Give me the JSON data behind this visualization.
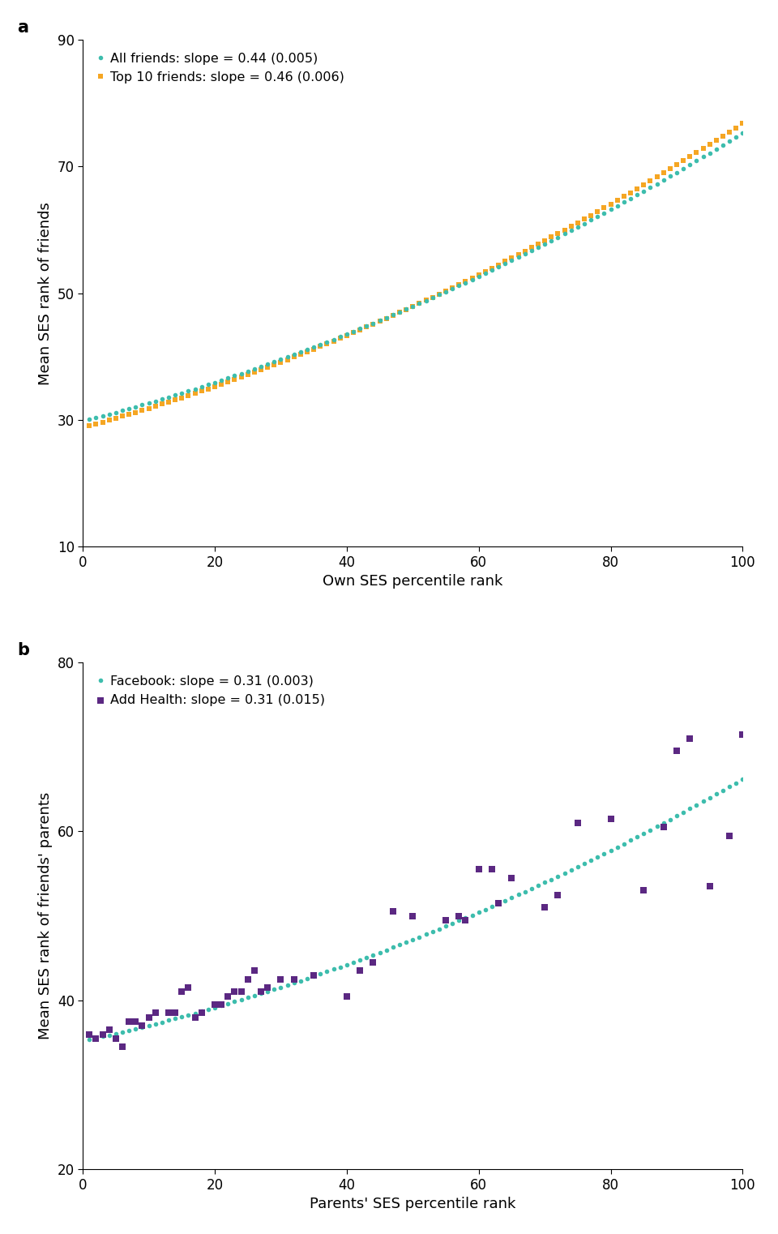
{
  "panel_a": {
    "title_label": "a",
    "xlabel": "Own SES percentile rank",
    "ylabel": "Mean SES rank of friends",
    "xlim": [
      0,
      100
    ],
    "ylim": [
      10,
      90
    ],
    "yticks": [
      10,
      30,
      50,
      70,
      90
    ],
    "xticks": [
      0,
      20,
      40,
      60,
      80,
      100
    ],
    "all_friends": {
      "label": "All friends: slope = 0.44 (0.005)",
      "color": "#3dbdad",
      "marker": "o",
      "markersize": 4.0,
      "p0": 29.8,
      "p1": 0.27,
      "p2": 0.00185
    },
    "top10_friends": {
      "label": "Top 10 friends: slope = 0.46 (0.006)",
      "color": "#f5a623",
      "marker": "s",
      "markersize": 3.8,
      "p0": 28.8,
      "p1": 0.285,
      "p2": 0.00195
    }
  },
  "panel_b": {
    "title_label": "b",
    "xlabel": "Parents' SES percentile rank",
    "ylabel": "Mean SES rank of friends' parents",
    "xlim": [
      0,
      100
    ],
    "ylim": [
      20,
      80
    ],
    "yticks": [
      20,
      40,
      60,
      80
    ],
    "xticks": [
      0,
      20,
      40,
      60,
      80,
      100
    ],
    "facebook": {
      "label": "Facebook: slope = 0.31 (0.003)",
      "color": "#3dbdad",
      "marker": "o",
      "markersize": 4.0,
      "p0": 35.2,
      "p1": 0.17,
      "p2": 0.0014
    },
    "addhealth": {
      "label": "Add Health: slope = 0.31 (0.015)",
      "color": "#5b2882",
      "marker": "s",
      "markersize": 5.5,
      "x": [
        1,
        2,
        3,
        4,
        5,
        6,
        7,
        8,
        9,
        10,
        11,
        13,
        14,
        15,
        16,
        17,
        18,
        20,
        21,
        22,
        23,
        24,
        25,
        26,
        27,
        28,
        30,
        32,
        35,
        40,
        42,
        44,
        47,
        50,
        55,
        57,
        58,
        60,
        62,
        63,
        65,
        70,
        72,
        75,
        80,
        85,
        88,
        90,
        92,
        95,
        98,
        100
      ],
      "y": [
        36,
        35.5,
        36.0,
        36.5,
        35.5,
        34.5,
        37.5,
        37.5,
        37.0,
        38.0,
        38.5,
        38.5,
        38.5,
        41.0,
        41.5,
        38.0,
        38.5,
        39.5,
        39.5,
        40.5,
        41.0,
        41.0,
        42.5,
        43.5,
        41.0,
        41.5,
        42.5,
        42.5,
        43.0,
        40.5,
        43.5,
        44.5,
        50.5,
        50.0,
        49.5,
        50.0,
        49.5,
        55.5,
        55.5,
        51.5,
        54.5,
        51.0,
        52.5,
        61.0,
        61.5,
        53.0,
        60.5,
        69.5,
        71.0,
        53.5,
        59.5,
        71.5
      ]
    }
  },
  "background_color": "#ffffff",
  "label_fontsize": 13,
  "tick_fontsize": 12,
  "legend_fontsize": 11.5,
  "panel_label_fontsize": 15
}
